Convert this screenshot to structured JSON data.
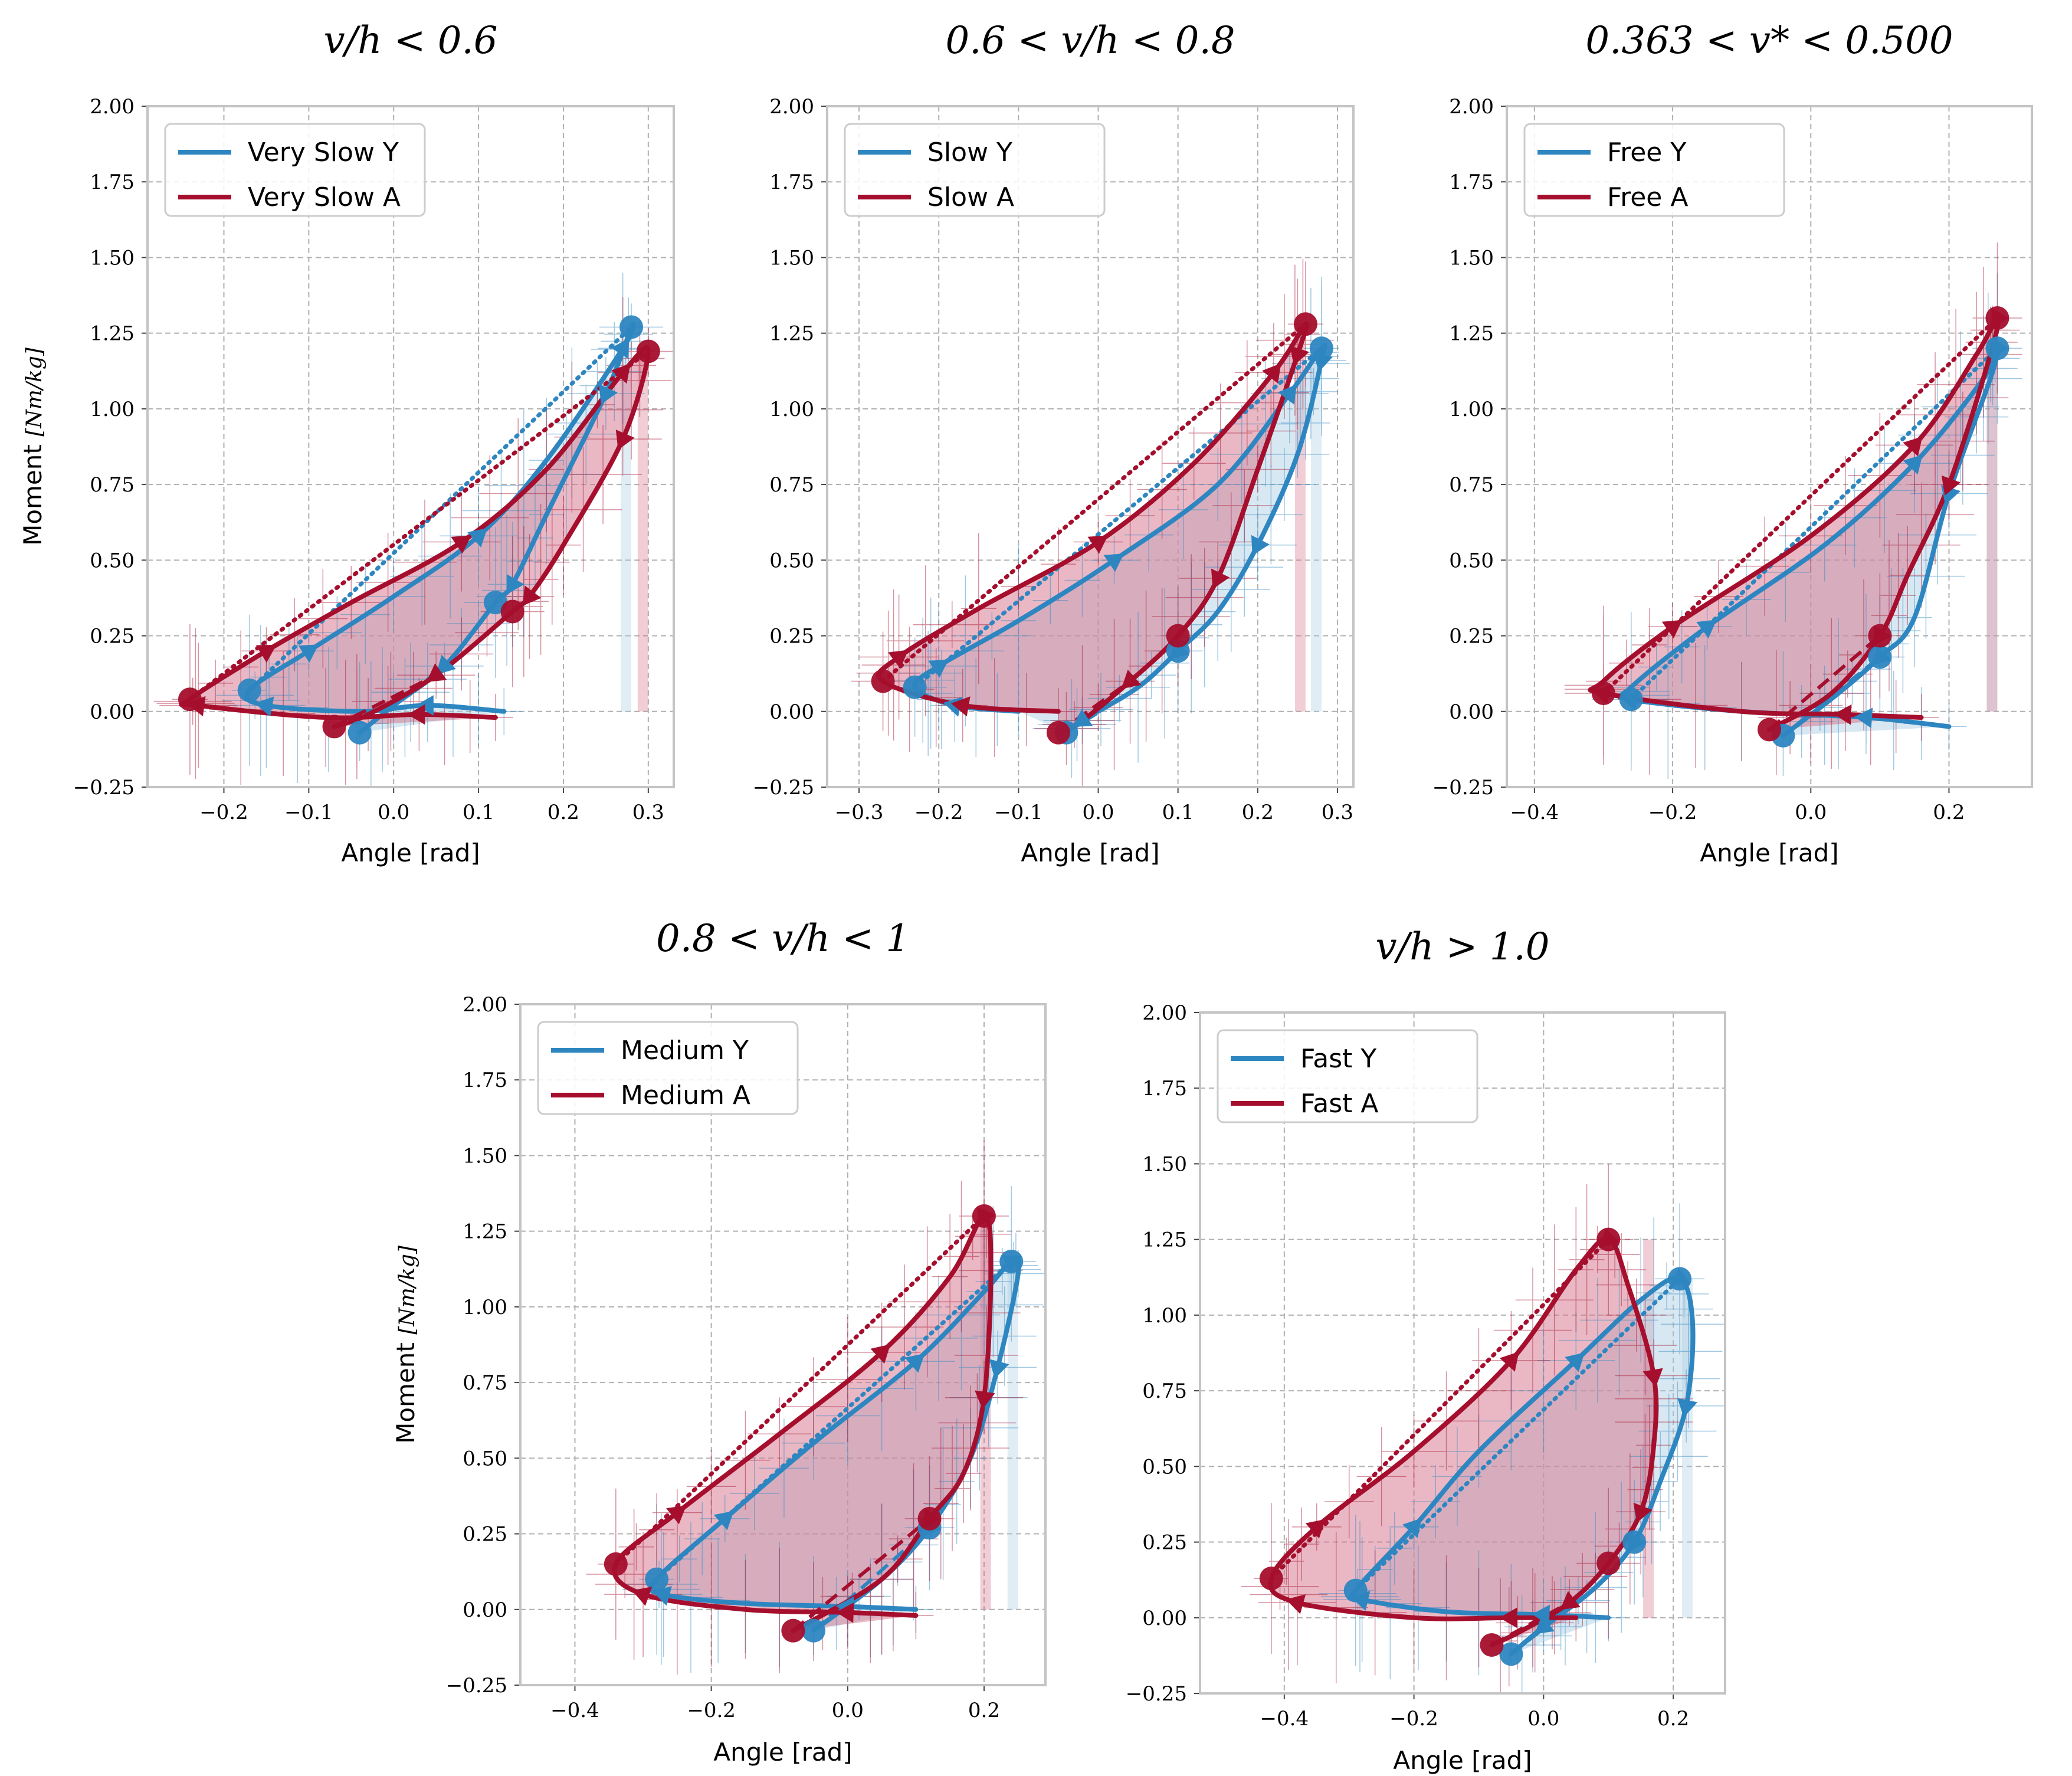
{
  "colors": {
    "Y": "#2e86c1",
    "A": "#a50f2d",
    "fillY": "#a9cce3",
    "fillA": "#d6728a"
  },
  "y_axis_label": "Moment",
  "y_axis_unit": "[Nm/kg]",
  "chart_data": [
    {
      "type": "line",
      "title": "v/h < 0.6",
      "xlabel": "Angle [rad]",
      "ylabel": "Moment [Nm/kg]",
      "xlim": [
        -0.29,
        0.33
      ],
      "ylim": [
        -0.25,
        2.0
      ],
      "xticks": [
        "-0.2",
        "-0.1",
        "0.0",
        "0.1",
        "0.2",
        "0.3"
      ],
      "xtick_values": [
        -0.2,
        -0.1,
        0.0,
        0.1,
        0.2,
        0.3
      ],
      "yticks": [
        "-0.25",
        "0.00",
        "0.25",
        "0.50",
        "0.75",
        "1.00",
        "1.25",
        "1.50",
        "1.75",
        "2.00"
      ],
      "grid": true,
      "legend": "top-left",
      "series": [
        {
          "name": "Very Slow Y",
          "x": [
            0.13,
            0.04,
            -0.04,
            -0.15,
            -0.17,
            -0.1,
            0.0,
            0.1,
            0.18,
            0.27,
            0.28,
            0.25,
            0.18,
            0.14,
            0.12,
            0.06,
            0.0,
            -0.04
          ],
          "y": [
            0.0,
            0.02,
            0.0,
            0.02,
            0.07,
            0.2,
            0.38,
            0.58,
            0.83,
            1.2,
            1.27,
            1.05,
            0.65,
            0.42,
            0.36,
            0.15,
            0.02,
            -0.07
          ]
        },
        {
          "name": "Very Slow A",
          "x": [
            0.12,
            0.03,
            -0.08,
            -0.23,
            -0.24,
            -0.15,
            -0.05,
            0.08,
            0.18,
            0.27,
            0.3,
            0.27,
            0.2,
            0.16,
            0.14,
            0.05,
            -0.03,
            -0.07
          ],
          "y": [
            -0.02,
            -0.01,
            -0.02,
            0.02,
            0.04,
            0.2,
            0.36,
            0.56,
            0.8,
            1.12,
            1.19,
            0.9,
            0.55,
            0.38,
            0.33,
            0.12,
            -0.01,
            -0.05
          ]
        }
      ]
    },
    {
      "type": "line",
      "title": "0.6 < v/h < 0.8",
      "xlabel": "Angle [rad]",
      "ylabel": "",
      "xlim": [
        -0.34,
        0.32
      ],
      "ylim": [
        -0.25,
        2.0
      ],
      "xticks": [
        "-0.3",
        "-0.2",
        "-0.1",
        "0.0",
        "0.1",
        "0.2",
        "0.3"
      ],
      "xtick_values": [
        -0.3,
        -0.2,
        -0.1,
        0.0,
        0.1,
        0.2,
        0.3
      ],
      "yticks": [
        "-0.25",
        "0.00",
        "0.25",
        "0.50",
        "0.75",
        "1.00",
        "1.25",
        "1.50",
        "1.75",
        "2.00"
      ],
      "grid": true,
      "legend": "top-left",
      "series": [
        {
          "name": "Slow Y",
          "x": [
            -0.1,
            -0.18,
            -0.23,
            -0.2,
            -0.1,
            0.02,
            0.15,
            0.24,
            0.28,
            0.28,
            0.25,
            0.2,
            0.15,
            0.1,
            0.05,
            -0.02,
            -0.04
          ],
          "y": [
            0.0,
            0.02,
            0.08,
            0.15,
            0.3,
            0.5,
            0.75,
            1.05,
            1.2,
            1.16,
            0.85,
            0.55,
            0.33,
            0.2,
            0.08,
            -0.03,
            -0.07
          ]
        },
        {
          "name": "Slow A",
          "x": [
            -0.05,
            -0.17,
            -0.27,
            -0.25,
            -0.15,
            0.0,
            0.12,
            0.22,
            0.26,
            0.25,
            0.2,
            0.15,
            0.1,
            0.04,
            -0.02,
            -0.05
          ],
          "y": [
            0.0,
            0.02,
            0.1,
            0.18,
            0.34,
            0.56,
            0.82,
            1.12,
            1.28,
            1.18,
            0.8,
            0.44,
            0.25,
            0.1,
            -0.03,
            -0.07
          ]
        }
      ]
    },
    {
      "type": "line",
      "title": "0.363 < v* < 0.500",
      "xlabel": "Angle [rad]",
      "ylabel": "",
      "xlim": [
        -0.44,
        0.32
      ],
      "ylim": [
        -0.25,
        2.0
      ],
      "xticks": [
        "-0.4",
        "-0.2",
        "0.0",
        "0.2"
      ],
      "xtick_values": [
        -0.4,
        -0.2,
        0.0,
        0.2
      ],
      "yticks": [
        "-0.25",
        "0.00",
        "0.25",
        "0.50",
        "0.75",
        "1.00",
        "1.25",
        "1.50",
        "1.75",
        "2.00"
      ],
      "grid": true,
      "legend": "top-left",
      "series": [
        {
          "name": "Free Y",
          "x": [
            0.2,
            0.08,
            -0.1,
            -0.26,
            -0.26,
            -0.15,
            0.02,
            0.15,
            0.25,
            0.27,
            0.26,
            0.2,
            0.15,
            0.1,
            0.04,
            -0.04
          ],
          "y": [
            -0.05,
            -0.02,
            0.0,
            0.04,
            0.08,
            0.28,
            0.55,
            0.82,
            1.1,
            1.2,
            1.1,
            0.72,
            0.31,
            0.18,
            0.06,
            -0.08
          ]
        },
        {
          "name": "Free A",
          "x": [
            0.16,
            0.05,
            -0.1,
            -0.3,
            -0.3,
            -0.2,
            0.0,
            0.15,
            0.24,
            0.27,
            0.26,
            0.2,
            0.14,
            0.1,
            0.03,
            -0.06
          ],
          "y": [
            -0.02,
            -0.01,
            0.0,
            0.06,
            0.1,
            0.28,
            0.58,
            0.88,
            1.18,
            1.3,
            1.18,
            0.75,
            0.45,
            0.25,
            0.06,
            -0.06
          ]
        }
      ]
    },
    {
      "type": "line",
      "title": "0.8 < v/h < 1",
      "xlabel": "Angle [rad]",
      "ylabel": "Moment [Nm/kg]",
      "xlim": [
        -0.48,
        0.29
      ],
      "ylim": [
        -0.25,
        2.0
      ],
      "xticks": [
        "-0.4",
        "-0.2",
        "0.0",
        "0.2"
      ],
      "xtick_values": [
        -0.4,
        -0.2,
        0.0,
        0.2
      ],
      "yticks": [
        "-0.25",
        "0.00",
        "0.25",
        "0.50",
        "0.75",
        "1.00",
        "1.25",
        "1.50",
        "1.75",
        "2.00"
      ],
      "grid": true,
      "legend": "top-left",
      "series": [
        {
          "name": "Medium Y",
          "x": [
            0.1,
            0.0,
            -0.15,
            -0.27,
            -0.28,
            -0.18,
            -0.05,
            0.1,
            0.2,
            0.24,
            0.25,
            0.22,
            0.18,
            0.12,
            0.05,
            -0.05
          ],
          "y": [
            0.0,
            0.01,
            0.02,
            0.05,
            0.1,
            0.3,
            0.55,
            0.82,
            1.05,
            1.15,
            1.11,
            0.8,
            0.5,
            0.27,
            0.1,
            -0.07
          ]
        },
        {
          "name": "Medium A",
          "x": [
            0.1,
            0.0,
            -0.15,
            -0.3,
            -0.34,
            -0.25,
            -0.1,
            0.05,
            0.15,
            0.2,
            0.21,
            0.2,
            0.17,
            0.12,
            0.05,
            -0.08
          ],
          "y": [
            -0.02,
            -0.01,
            0.0,
            0.05,
            0.15,
            0.32,
            0.58,
            0.85,
            1.1,
            1.3,
            1.12,
            0.7,
            0.45,
            0.3,
            0.1,
            -0.07
          ]
        }
      ]
    },
    {
      "type": "line",
      "title": "v/h > 1.0",
      "xlabel": "Angle [rad]",
      "ylabel": "",
      "xlim": [
        -0.53,
        0.28
      ],
      "ylim": [
        -0.25,
        2.0
      ],
      "xticks": [
        "-0.4",
        "-0.2",
        "0.0",
        "0.2"
      ],
      "xtick_values": [
        -0.4,
        -0.2,
        0.0,
        0.2
      ],
      "yticks": [
        "-0.25",
        "0.00",
        "0.25",
        "0.50",
        "0.75",
        "1.00",
        "1.25",
        "1.50",
        "1.75",
        "2.00"
      ],
      "grid": true,
      "legend": "top-left",
      "series": [
        {
          "name": "Fast Y",
          "x": [
            0.1,
            0.0,
            -0.15,
            -0.28,
            -0.29,
            -0.2,
            -0.1,
            0.05,
            0.15,
            0.21,
            0.23,
            0.22,
            0.18,
            0.14,
            0.08,
            0.0,
            -0.05
          ],
          "y": [
            0.0,
            0.01,
            0.02,
            0.06,
            0.09,
            0.3,
            0.55,
            0.85,
            1.05,
            1.12,
            0.97,
            0.7,
            0.45,
            0.25,
            0.1,
            -0.03,
            -0.12
          ]
        },
        {
          "name": "Fast A",
          "x": [
            0.05,
            -0.05,
            -0.2,
            -0.38,
            -0.42,
            -0.35,
            -0.2,
            -0.05,
            0.05,
            0.1,
            0.13,
            0.17,
            0.17,
            0.15,
            0.1,
            0.04,
            -0.04,
            -0.08
          ],
          "y": [
            0.0,
            0.0,
            0.0,
            0.05,
            0.13,
            0.3,
            0.55,
            0.85,
            1.15,
            1.25,
            1.1,
            0.8,
            0.57,
            0.35,
            0.18,
            0.05,
            -0.05,
            -0.09
          ]
        }
      ]
    }
  ]
}
